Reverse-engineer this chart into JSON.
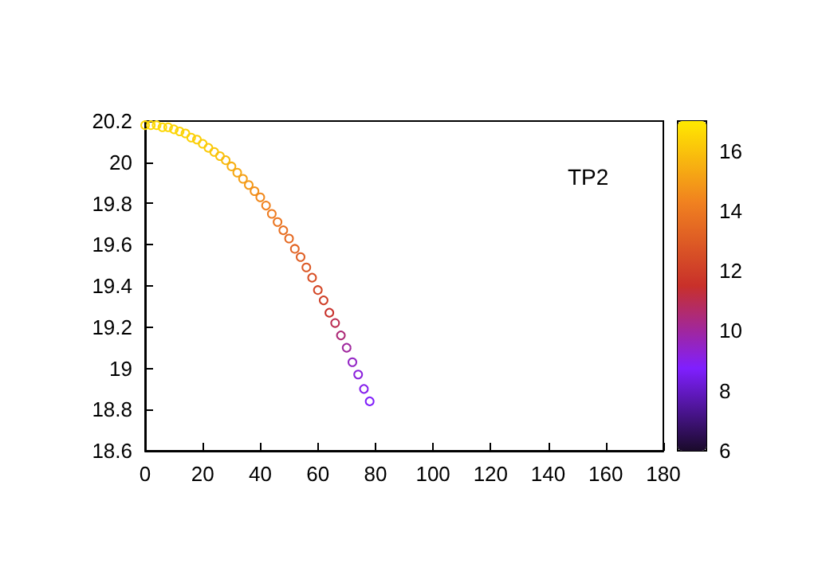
{
  "chart_data": {
    "type": "scatter",
    "annotations": [
      "TP2"
    ],
    "x": [
      0,
      2,
      4,
      6,
      8,
      10,
      12,
      14,
      16,
      18,
      20,
      22,
      24,
      26,
      28,
      30,
      32,
      34,
      36,
      38,
      40,
      42,
      44,
      46,
      48,
      50,
      52,
      54,
      56,
      58,
      60,
      62,
      64,
      66,
      68,
      70,
      72,
      74,
      76,
      78
    ],
    "values": [
      20.18,
      20.18,
      20.18,
      20.17,
      20.17,
      20.16,
      20.15,
      20.14,
      20.12,
      20.11,
      20.09,
      20.07,
      20.05,
      20.03,
      20.01,
      19.98,
      19.95,
      19.92,
      19.89,
      19.86,
      19.83,
      19.79,
      19.75,
      19.71,
      19.67,
      19.63,
      19.58,
      19.54,
      19.49,
      19.44,
      19.38,
      19.33,
      19.27,
      19.22,
      19.16,
      19.1,
      19.03,
      18.97,
      18.9,
      18.84
    ],
    "cvalues": [
      16.6,
      16.6,
      16.6,
      16.6,
      16.5,
      16.5,
      16.5,
      16.4,
      16.4,
      16.3,
      16.3,
      16.2,
      16.1,
      16,
      15.8,
      15.5,
      15.3,
      15.1,
      14.9,
      14.7,
      14.5,
      14.3,
      14.1,
      13.9,
      13.7,
      13.5,
      13.3,
      13.1,
      12.9,
      12.6,
      12.3,
      12,
      11.5,
      11,
      10.5,
      10,
      9.5,
      9.2,
      9,
      8.8
    ],
    "xlim": [
      0,
      180
    ],
    "xticks": [
      0,
      20,
      40,
      60,
      80,
      100,
      120,
      140,
      160,
      180
    ],
    "ylim": [
      18.6,
      20.2
    ],
    "yticks": [
      18.6,
      18.8,
      19,
      19.2,
      19.4,
      19.6,
      19.8,
      20,
      20.2
    ],
    "clim": [
      6,
      17
    ],
    "cticks": [
      6,
      8,
      10,
      12,
      14,
      16
    ],
    "marker": "circle",
    "grid": false
  }
}
